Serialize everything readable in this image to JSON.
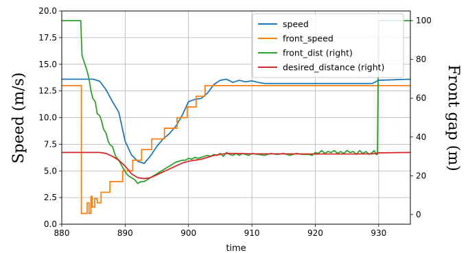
{
  "chart_data": {
    "type": "line",
    "xlabel": "time",
    "ylabel": "Speed (m/s)",
    "ylabel_right": "Front gap (m)",
    "xlim": [
      880,
      935
    ],
    "ylim": [
      0,
      20
    ],
    "ylim_right": [
      -5,
      105
    ],
    "xticks": [
      880,
      890,
      900,
      910,
      920,
      930
    ],
    "yticks": [
      "0.0",
      "2.5",
      "5.0",
      "7.5",
      "10.0",
      "12.5",
      "15.0",
      "17.5",
      "20.0"
    ],
    "yticks_right": [
      0,
      20,
      40,
      60,
      80,
      100
    ],
    "grid": true,
    "legend_position": "top-right",
    "series": [
      {
        "name": "speed",
        "axis": "left",
        "color": "#1f77b4",
        "points": [
          [
            880,
            13.6
          ],
          [
            885,
            13.6
          ],
          [
            886,
            13.4
          ],
          [
            887,
            12.6
          ],
          [
            888,
            11.5
          ],
          [
            889,
            10.5
          ],
          [
            890,
            7.8
          ],
          [
            891,
            6.5
          ],
          [
            892,
            5.9
          ],
          [
            893,
            5.7
          ],
          [
            894,
            6.4
          ],
          [
            895,
            7.3
          ],
          [
            896,
            8.0
          ],
          [
            897,
            8.5
          ],
          [
            898,
            9.2
          ],
          [
            899,
            10.2
          ],
          [
            900,
            11.5
          ],
          [
            901,
            11.7
          ],
          [
            902,
            11.8
          ],
          [
            903,
            12.3
          ],
          [
            904,
            13.1
          ],
          [
            905,
            13.5
          ],
          [
            906,
            13.6
          ],
          [
            907,
            13.3
          ],
          [
            908,
            13.5
          ],
          [
            909,
            13.35
          ],
          [
            910,
            13.45
          ],
          [
            911,
            13.3
          ],
          [
            912,
            13.2
          ],
          [
            920,
            13.2
          ],
          [
            929,
            13.2
          ],
          [
            930,
            13.5
          ],
          [
            935,
            13.6
          ]
        ]
      },
      {
        "name": "front_speed",
        "axis": "left",
        "color": "#ff7f0e",
        "step": true,
        "points": [
          [
            880,
            13
          ],
          [
            883,
            13
          ],
          [
            883.1,
            1
          ],
          [
            883.9,
            1
          ],
          [
            884,
            2
          ],
          [
            884.3,
            1
          ],
          [
            884.6,
            2.6
          ],
          [
            884.8,
            1.6
          ],
          [
            885.2,
            2.4
          ],
          [
            885.6,
            2
          ],
          [
            886.2,
            3
          ],
          [
            887,
            3
          ],
          [
            887.6,
            4
          ],
          [
            889,
            4
          ],
          [
            889.6,
            5
          ],
          [
            890.6,
            5
          ],
          [
            891.2,
            6
          ],
          [
            892,
            6
          ],
          [
            892.6,
            7
          ],
          [
            893.6,
            7
          ],
          [
            894.2,
            8
          ],
          [
            895.6,
            8
          ],
          [
            896.2,
            9
          ],
          [
            897.6,
            9
          ],
          [
            898.2,
            10
          ],
          [
            899.2,
            10
          ],
          [
            899.8,
            11
          ],
          [
            900.6,
            11
          ],
          [
            901.2,
            12
          ],
          [
            902,
            12
          ],
          [
            902.6,
            13
          ],
          [
            935,
            13
          ]
        ]
      },
      {
        "name": "front_dist (right)",
        "axis": "right",
        "color": "#2ca02c",
        "points": [
          [
            880,
            100
          ],
          [
            883,
            100
          ],
          [
            883.2,
            82
          ],
          [
            883.6,
            78
          ],
          [
            884,
            74
          ],
          [
            884.3,
            70
          ],
          [
            884.6,
            64
          ],
          [
            884.9,
            60
          ],
          [
            885.3,
            58
          ],
          [
            885.6,
            52
          ],
          [
            886,
            51
          ],
          [
            886.3,
            48
          ],
          [
            886.6,
            44
          ],
          [
            887,
            42
          ],
          [
            887.3,
            38
          ],
          [
            887.6,
            36
          ],
          [
            888,
            35
          ],
          [
            888.5,
            30
          ],
          [
            889,
            28
          ],
          [
            889.5,
            25
          ],
          [
            890,
            22
          ],
          [
            890.5,
            20
          ],
          [
            891,
            19
          ],
          [
            891.5,
            18
          ],
          [
            892,
            16
          ],
          [
            892.5,
            17
          ],
          [
            893,
            17
          ],
          [
            893.5,
            18
          ],
          [
            894,
            19
          ],
          [
            894.5,
            20
          ],
          [
            895,
            21
          ],
          [
            895.5,
            22
          ],
          [
            896,
            23
          ],
          [
            896.5,
            24
          ],
          [
            897,
            25
          ],
          [
            897.5,
            26
          ],
          [
            898,
            27
          ],
          [
            898.5,
            27.5
          ],
          [
            899,
            28
          ],
          [
            899.5,
            28
          ],
          [
            900,
            29
          ],
          [
            900.5,
            28.5
          ],
          [
            901,
            29.5
          ],
          [
            901.5,
            29
          ],
          [
            902,
            29.5
          ],
          [
            902.5,
            30
          ],
          [
            903,
            30.5
          ],
          [
            903.5,
            30
          ],
          [
            904,
            31
          ],
          [
            904.5,
            30.5
          ],
          [
            905,
            31.5
          ],
          [
            905.5,
            30
          ],
          [
            906,
            32
          ],
          [
            906.5,
            31
          ],
          [
            907,
            30.5
          ],
          [
            907.5,
            31.5
          ],
          [
            908,
            30.5
          ],
          [
            908.5,
            31.5
          ],
          [
            909,
            31
          ],
          [
            909.5,
            30.5
          ],
          [
            910,
            31.5
          ],
          [
            911,
            31
          ],
          [
            912,
            30.5
          ],
          [
            913,
            31.5
          ],
          [
            914,
            31
          ],
          [
            915,
            31.5
          ],
          [
            916,
            30.5
          ],
          [
            917,
            31.5
          ],
          [
            918,
            31
          ],
          [
            919,
            31
          ],
          [
            919.5,
            30.5
          ],
          [
            920,
            32
          ],
          [
            920.5,
            31.5
          ],
          [
            921,
            33
          ],
          [
            921.5,
            31.5
          ],
          [
            922,
            32.5
          ],
          [
            922.5,
            32
          ],
          [
            923,
            33
          ],
          [
            923.5,
            31.5
          ],
          [
            924,
            32.5
          ],
          [
            924.5,
            31.5
          ],
          [
            925,
            33
          ],
          [
            925.5,
            32
          ],
          [
            926,
            32.5
          ],
          [
            926.5,
            31
          ],
          [
            927,
            33
          ],
          [
            927.5,
            31.5
          ],
          [
            928,
            32.5
          ],
          [
            928.5,
            31
          ],
          [
            929,
            32
          ],
          [
            929.3,
            33
          ],
          [
            929.6,
            31
          ],
          [
            929.8,
            31
          ],
          [
            930,
            100
          ],
          [
            935,
            100
          ]
        ]
      },
      {
        "name": "desired_distance (right)",
        "axis": "right",
        "color": "#d62728",
        "points": [
          [
            880,
            32
          ],
          [
            886,
            32
          ],
          [
            887,
            31.5
          ],
          [
            888,
            30
          ],
          [
            889,
            28
          ],
          [
            890,
            25
          ],
          [
            891,
            21
          ],
          [
            892,
            19
          ],
          [
            893,
            18.5
          ],
          [
            894,
            19
          ],
          [
            895,
            20.5
          ],
          [
            896,
            22
          ],
          [
            897,
            23.5
          ],
          [
            898,
            25
          ],
          [
            899,
            26.5
          ],
          [
            900,
            27.5
          ],
          [
            901,
            28
          ],
          [
            902,
            28.5
          ],
          [
            903,
            29.5
          ],
          [
            904,
            30.5
          ],
          [
            905,
            31
          ],
          [
            906,
            31.5
          ],
          [
            907,
            31.5
          ],
          [
            910,
            31.3
          ],
          [
            915,
            31.3
          ],
          [
            920,
            31.2
          ],
          [
            925,
            31.2
          ],
          [
            929,
            31.3
          ],
          [
            930,
            31.8
          ],
          [
            935,
            32
          ]
        ]
      }
    ]
  }
}
